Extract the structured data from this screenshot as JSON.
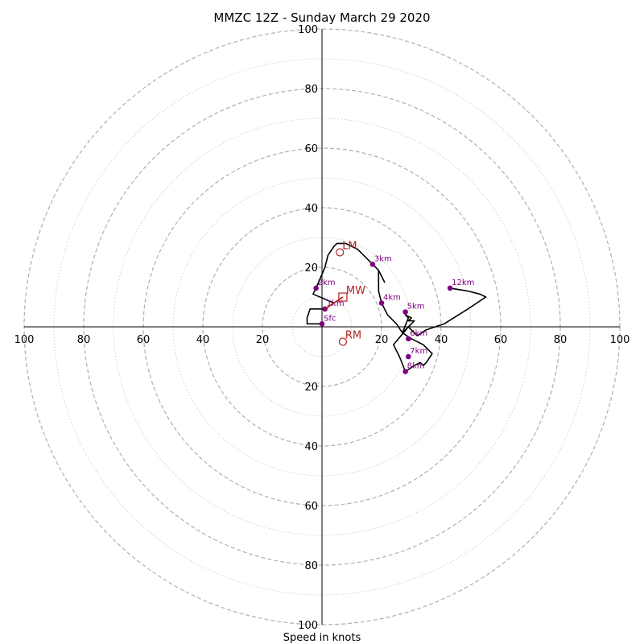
{
  "chart_data": {
    "type": "hodograph",
    "title": "MMZC 12Z - Sunday March 29 2020",
    "xlabel": "Speed in knots",
    "ring_step": 10,
    "labeled_ring_step": 20,
    "max_speed": 100,
    "tick_labels": [
      "20",
      "40",
      "60",
      "80",
      "100"
    ],
    "colors": {
      "trace": "#000000",
      "height_marker": "#800080",
      "storm_motion": "#b22222",
      "ring_major": "#b0b0b0",
      "ring_minor": "#c8c8c8"
    },
    "trace": [
      [
        0,
        1
      ],
      [
        -5,
        1
      ],
      [
        -5,
        3
      ],
      [
        -4,
        6
      ],
      [
        -2,
        6
      ],
      [
        1,
        6
      ],
      [
        4,
        8
      ],
      [
        -3,
        11
      ],
      [
        -2,
        13
      ],
      [
        1,
        20
      ],
      [
        2,
        24
      ],
      [
        4,
        27
      ],
      [
        5,
        28
      ],
      [
        8,
        28
      ],
      [
        12,
        26
      ],
      [
        17,
        21
      ],
      [
        19,
        19
      ],
      [
        20,
        17
      ],
      [
        21,
        15
      ],
      [
        19,
        19
      ],
      [
        19,
        16
      ],
      [
        19,
        12
      ],
      [
        20,
        8
      ],
      [
        22,
        4
      ],
      [
        25,
        1
      ],
      [
        27,
        -2
      ],
      [
        29,
        3
      ],
      [
        28,
        4
      ],
      [
        30,
        3
      ],
      [
        29,
        2
      ],
      [
        31,
        2
      ],
      [
        29,
        0
      ],
      [
        24,
        -6
      ],
      [
        26,
        -10
      ],
      [
        28,
        -15
      ],
      [
        31,
        -13
      ],
      [
        33,
        -12
      ],
      [
        34,
        -13
      ],
      [
        35,
        -12
      ],
      [
        37,
        -9
      ],
      [
        34,
        -6
      ],
      [
        30,
        -4
      ],
      [
        27,
        -2
      ],
      [
        29,
        0
      ],
      [
        32,
        -3
      ],
      [
        35,
        -1
      ],
      [
        41,
        1
      ],
      [
        49,
        6
      ],
      [
        55,
        10
      ],
      [
        53,
        11
      ],
      [
        49,
        12
      ],
      [
        43,
        13
      ]
    ],
    "height_markers": [
      {
        "label": "Sfc",
        "x": 0,
        "y": 1
      },
      {
        "label": "1km",
        "x": 1,
        "y": 6
      },
      {
        "label": "2km",
        "x": -2,
        "y": 13
      },
      {
        "label": "3km",
        "x": 17,
        "y": 21
      },
      {
        "label": "4km",
        "x": 20,
        "y": 8
      },
      {
        "label": "5km",
        "x": 28,
        "y": 5
      },
      {
        "label": "6km",
        "x": 29,
        "y": -4
      },
      {
        "label": "7km",
        "x": 29,
        "y": -10
      },
      {
        "label": "8km",
        "x": 28,
        "y": -15
      },
      {
        "label": "12km",
        "x": 43,
        "y": 13
      }
    ],
    "storm_motion": {
      "mean_wind": {
        "label": "MW",
        "x": 7,
        "y": 10
      },
      "left_mover": {
        "label": "LM",
        "x": 6,
        "y": 25
      },
      "right_mover": {
        "label": "RM",
        "x": 7,
        "y": -5
      },
      "shear_vector_start": {
        "x": 1,
        "y": 6
      }
    }
  }
}
